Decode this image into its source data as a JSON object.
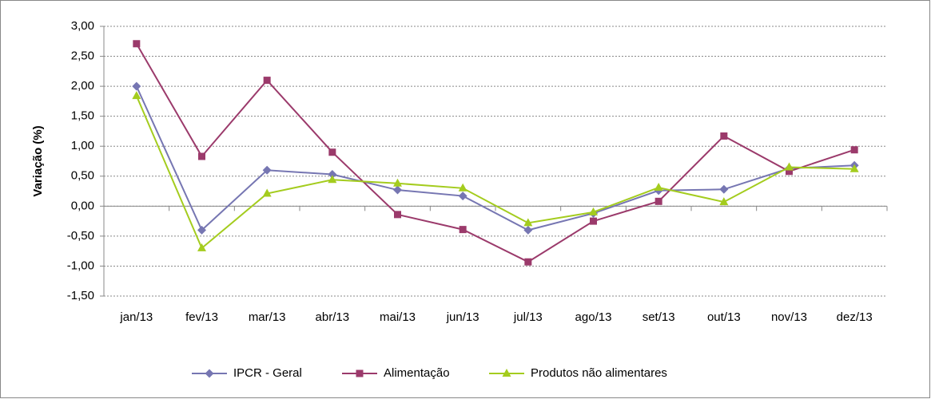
{
  "chart_data": {
    "type": "line",
    "y_label": "Variação (%)",
    "categories": [
      "jan/13",
      "fev/13",
      "mar/13",
      "abr/13",
      "mai/13",
      "jun/13",
      "jul/13",
      "ago/13",
      "set/13",
      "out/13",
      "nov/13",
      "dez/13"
    ],
    "series": [
      {
        "name": "IPCR - Geral",
        "color": "#7676b2",
        "marker": "diamond",
        "values": [
          2.0,
          -0.4,
          0.6,
          0.53,
          0.27,
          0.17,
          -0.4,
          -0.12,
          0.26,
          0.28,
          0.63,
          0.68
        ]
      },
      {
        "name": "Alimentação",
        "color": "#9b3a6b",
        "marker": "square",
        "values": [
          2.71,
          0.83,
          2.1,
          0.9,
          -0.14,
          -0.39,
          -0.93,
          -0.25,
          0.08,
          1.17,
          0.58,
          0.94
        ]
      },
      {
        "name": "Produtos não alimentares",
        "color": "#a4cc1e",
        "marker": "triangle",
        "values": [
          1.84,
          -0.7,
          0.21,
          0.44,
          0.38,
          0.3,
          -0.28,
          -0.1,
          0.31,
          0.07,
          0.65,
          0.62
        ]
      }
    ],
    "ylim": [
      -1.5,
      3.0
    ],
    "yticks": [
      {
        "value": -1.5,
        "label": "-1,50"
      },
      {
        "value": -1.0,
        "label": "-1,00"
      },
      {
        "value": -0.5,
        "label": "-0,50"
      },
      {
        "value": 0,
        "label": "0,00"
      },
      {
        "value": 0.5,
        "label": "0,50"
      },
      {
        "value": 1.0,
        "label": "1,00"
      },
      {
        "value": 1.5,
        "label": "1,50"
      },
      {
        "value": 2.0,
        "label": "2,00"
      },
      {
        "value": 2.5,
        "label": "2,50"
      },
      {
        "value": 3.0,
        "label": "3,00"
      }
    ],
    "grid": true,
    "legend": "bottom"
  }
}
